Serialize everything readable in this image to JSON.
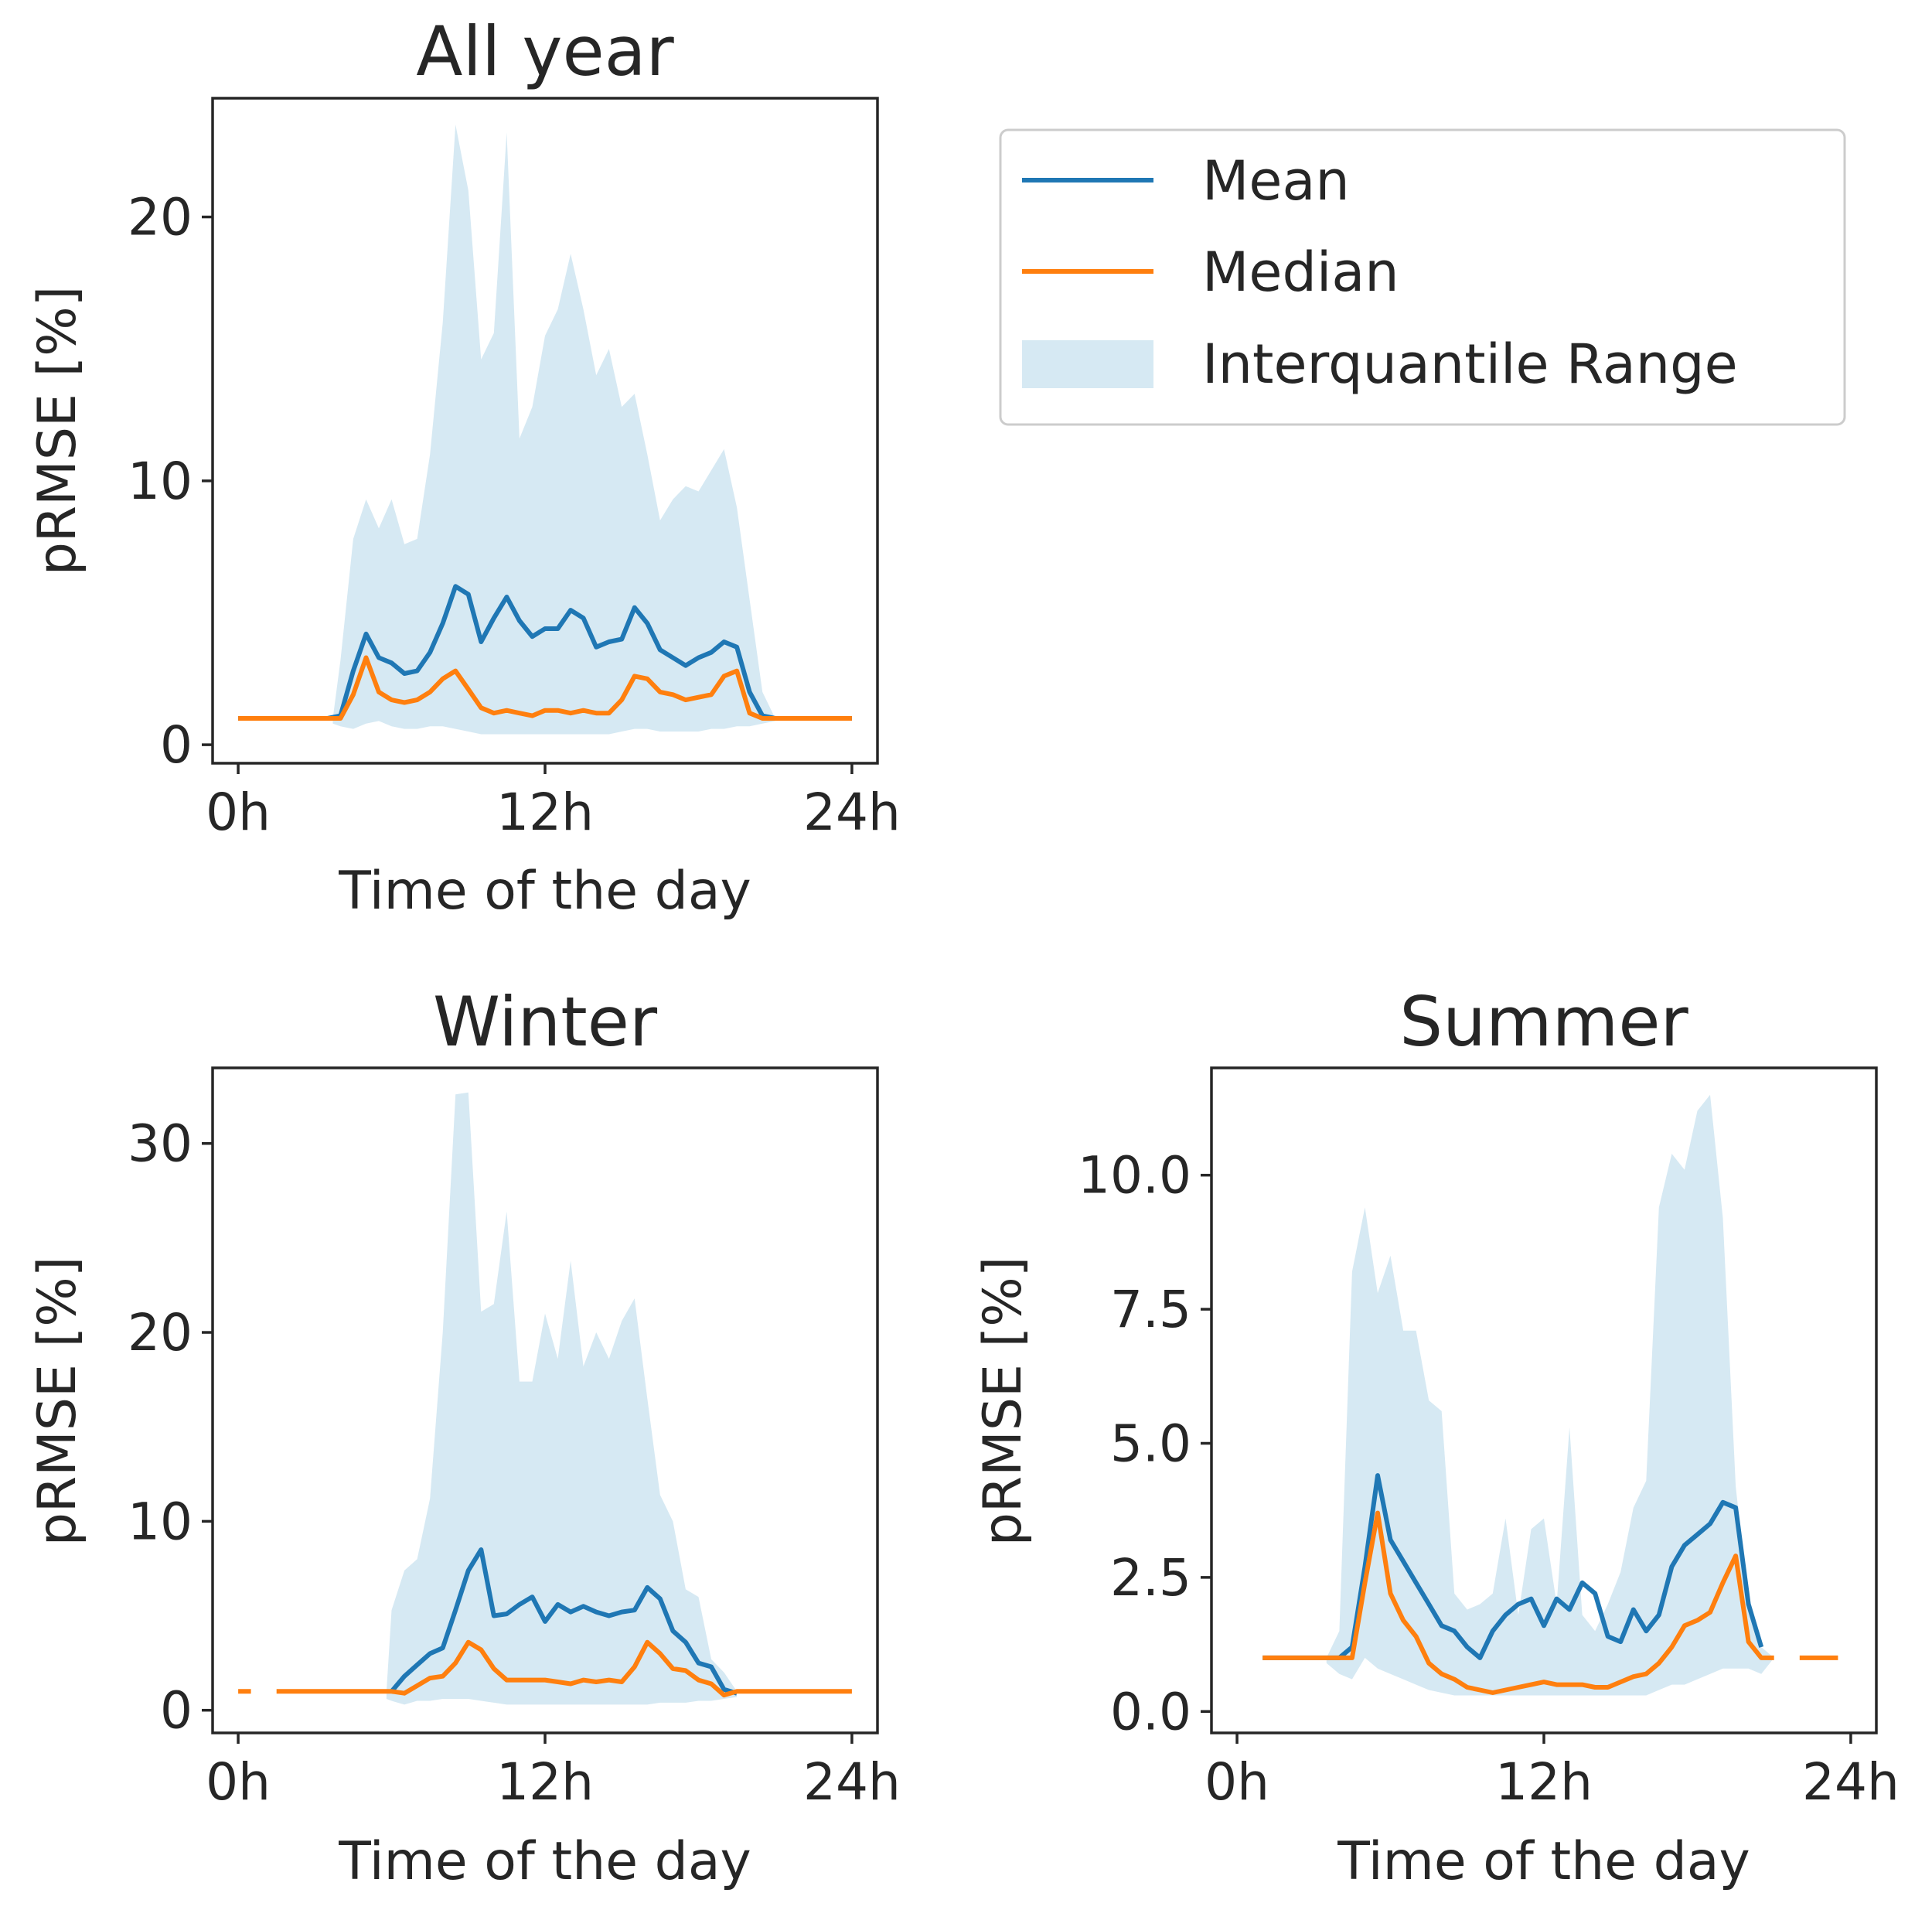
{
  "colors": {
    "mean": "#1f77b4",
    "median": "#ff7f0e",
    "iqr": "#d6e9f3"
  },
  "legend": {
    "mean": "Mean",
    "median": "Median",
    "iqr": "Interquantile Range"
  },
  "chart_data": [
    {
      "type": "line",
      "title": "All year",
      "xlabel": "Time of the day",
      "ylabel": "pRMSE [%]",
      "xlim": [
        -1,
        25
      ],
      "ylim": [
        -0.7,
        24.5
      ],
      "xticks": [
        0,
        12,
        24
      ],
      "xticklabels": [
        "0h",
        "12h",
        "24h"
      ],
      "yticks": [
        0,
        10,
        20
      ],
      "yticklabels": [
        "0",
        "10",
        "20"
      ],
      "x": [
        0,
        0.5,
        1,
        1.5,
        2,
        2.5,
        3,
        3.5,
        4,
        4.5,
        5,
        5.5,
        6,
        6.5,
        7,
        7.5,
        8,
        8.5,
        9,
        9.5,
        10,
        10.5,
        11,
        11.5,
        12,
        12.5,
        13,
        13.5,
        14,
        14.5,
        15,
        15.5,
        16,
        16.5,
        17,
        17.5,
        18,
        18.5,
        19,
        19.5,
        20,
        20.5,
        21,
        21.5,
        22,
        22.5,
        23,
        23.5,
        24
      ],
      "series": [
        {
          "name": "Mean",
          "values": [
            1,
            1,
            1,
            1,
            1,
            1,
            1,
            1,
            1.1,
            2.8,
            4.2,
            3.3,
            3.1,
            2.7,
            2.8,
            3.5,
            4.6,
            6,
            5.7,
            3.9,
            4.8,
            5.6,
            4.7,
            4.1,
            4.4,
            4.4,
            5.1,
            4.8,
            3.7,
            3.9,
            4,
            5.2,
            4.6,
            3.6,
            3.3,
            3,
            3.3,
            3.5,
            3.9,
            3.7,
            2,
            1.1,
            1,
            1,
            1,
            1,
            1,
            1,
            1
          ]
        },
        {
          "name": "Median",
          "values": [
            1,
            1,
            1,
            1,
            1,
            1,
            1,
            1,
            1,
            1.9,
            3.3,
            2,
            1.7,
            1.6,
            1.7,
            2,
            2.5,
            2.8,
            2.1,
            1.4,
            1.2,
            1.3,
            1.2,
            1.1,
            1.3,
            1.3,
            1.2,
            1.3,
            1.2,
            1.2,
            1.7,
            2.6,
            2.5,
            2,
            1.9,
            1.7,
            1.8,
            1.9,
            2.6,
            2.8,
            1.2,
            1,
            1,
            1,
            1,
            1,
            1,
            1,
            1
          ]
        }
      ],
      "band": {
        "name": "Interquantile Range",
        "x": [
          3.7,
          4,
          4.5,
          5,
          5.5,
          6,
          6.5,
          7,
          7.5,
          8,
          8.5,
          9,
          9.5,
          10,
          10.5,
          11,
          11.5,
          12,
          12.5,
          13,
          13.5,
          14,
          14.5,
          15,
          15.5,
          16,
          16.5,
          17,
          17.5,
          18,
          18.5,
          19,
          19.5,
          20,
          20.5,
          21
        ],
        "lower": [
          0.8,
          0.7,
          0.6,
          0.8,
          0.9,
          0.7,
          0.6,
          0.6,
          0.7,
          0.7,
          0.6,
          0.5,
          0.4,
          0.4,
          0.4,
          0.4,
          0.4,
          0.4,
          0.4,
          0.4,
          0.4,
          0.4,
          0.4,
          0.5,
          0.6,
          0.6,
          0.5,
          0.5,
          0.5,
          0.5,
          0.6,
          0.6,
          0.7,
          0.7,
          0.8,
          0.9
        ],
        "upper": [
          1,
          3.2,
          7.8,
          9.3,
          8.2,
          9.3,
          7.6,
          7.8,
          11,
          16,
          23.5,
          21,
          14.6,
          15.6,
          23.2,
          11.6,
          12.8,
          15.5,
          16.5,
          18.6,
          16.5,
          14,
          15,
          12.8,
          13.3,
          11,
          8.5,
          9.3,
          9.8,
          9.6,
          10.4,
          11.2,
          9,
          5.5,
          2,
          1
        ]
      }
    },
    {
      "type": "line",
      "title": "Winter",
      "xlabel": "Time of the day",
      "ylabel": "pRMSE [%]",
      "xlim": [
        -1,
        25
      ],
      "ylim": [
        -1.2,
        34
      ],
      "xticks": [
        0,
        12,
        24
      ],
      "xticklabels": [
        "0h",
        "12h",
        "24h"
      ],
      "yticks": [
        0,
        10,
        20,
        30
      ],
      "yticklabels": [
        "0",
        "10",
        "20",
        "30"
      ],
      "x": [
        0,
        0.5,
        1,
        1.5,
        2,
        2.5,
        3,
        3.5,
        4,
        4.5,
        5,
        5.5,
        6,
        6.5,
        7,
        7.5,
        8,
        8.5,
        9,
        9.5,
        10,
        10.5,
        11,
        11.5,
        12,
        12.5,
        13,
        13.5,
        14,
        14.5,
        15,
        15.5,
        16,
        16.5,
        17,
        17.5,
        18,
        18.5,
        19,
        19.5,
        20,
        20.5,
        21,
        21.5,
        22,
        22.5,
        23,
        23.5,
        24
      ],
      "series": [
        {
          "name": "Mean",
          "values": [
            null,
            null,
            null,
            null,
            null,
            null,
            null,
            null,
            null,
            null,
            null,
            null,
            1,
            1.8,
            2.4,
            3,
            3.3,
            5.3,
            7.4,
            8.5,
            5,
            5.1,
            5.6,
            6,
            4.7,
            5.6,
            5.2,
            5.5,
            5.2,
            5,
            5.2,
            5.3,
            6.5,
            5.9,
            4.2,
            3.6,
            2.5,
            2.3,
            1.1,
            0.9,
            null,
            null,
            null,
            null,
            null,
            null,
            null,
            null,
            null
          ]
        },
        {
          "name": "Median",
          "values": [
            1,
            1,
            null,
            1,
            1,
            1,
            1,
            1,
            1,
            1,
            1,
            1,
            1,
            0.9,
            1.3,
            1.7,
            1.8,
            2.5,
            3.6,
            3.2,
            2.2,
            1.6,
            1.6,
            1.6,
            1.6,
            1.5,
            1.4,
            1.6,
            1.5,
            1.6,
            1.5,
            2.3,
            3.6,
            3,
            2.2,
            2.1,
            1.6,
            1.4,
            0.8,
            1,
            1,
            1,
            1,
            1,
            1,
            1,
            1,
            1,
            1
          ]
        }
      ],
      "band": {
        "name": "Interquantile Range",
        "x": [
          5.8,
          6,
          6.5,
          7,
          7.5,
          8,
          8.5,
          9,
          9.5,
          10,
          10.5,
          11,
          11.5,
          12,
          12.5,
          13,
          13.5,
          14,
          14.5,
          15,
          15.5,
          16,
          16.5,
          17,
          17.5,
          18,
          18.5,
          19,
          19.5
        ],
        "lower": [
          0.6,
          0.5,
          0.3,
          0.5,
          0.5,
          0.6,
          0.6,
          0.6,
          0.5,
          0.4,
          0.3,
          0.3,
          0.3,
          0.3,
          0.3,
          0.3,
          0.3,
          0.3,
          0.3,
          0.3,
          0.3,
          0.3,
          0.4,
          0.4,
          0.4,
          0.5,
          0.5,
          0.6,
          0.7
        ],
        "upper": [
          1,
          5.3,
          7.4,
          8,
          11.2,
          20,
          32.6,
          32.7,
          21.1,
          21.5,
          26.4,
          17.4,
          17.4,
          21,
          18.6,
          23.8,
          18.2,
          20,
          18.6,
          20.6,
          21.8,
          16.5,
          11.4,
          10,
          6.4,
          6,
          2.7,
          2,
          1
        ]
      }
    },
    {
      "type": "line",
      "title": "Summer",
      "xlabel": "Time of the day",
      "ylabel": "pRMSE [%]",
      "xlim": [
        -1,
        25
      ],
      "ylim": [
        -0.4,
        12
      ],
      "xticks": [
        0,
        12,
        24
      ],
      "xticklabels": [
        "0h",
        "12h",
        "24h"
      ],
      "yticks": [
        0,
        2.5,
        5,
        7.5,
        10
      ],
      "yticklabels": [
        "0.0",
        "2.5",
        "5.0",
        "7.5",
        "10.0"
      ],
      "x": [
        0,
        0.5,
        1,
        1.5,
        2,
        2.5,
        3,
        3.5,
        4,
        4.5,
        5,
        5.5,
        6,
        6.5,
        7,
        7.5,
        8,
        8.5,
        9,
        9.5,
        10,
        10.5,
        11,
        11.5,
        12,
        12.5,
        13,
        13.5,
        14,
        14.5,
        15,
        15.5,
        16,
        16.5,
        17,
        17.5,
        18,
        18.5,
        19,
        19.5,
        20,
        20.5,
        21,
        21.5,
        22,
        22.5,
        23,
        23.5,
        24
      ],
      "series": [
        {
          "name": "Mean",
          "values": [
            null,
            null,
            1,
            1,
            1,
            1,
            1,
            1,
            1,
            1.2,
            2.7,
            4.4,
            3.2,
            2.8,
            2.4,
            2,
            1.6,
            1.5,
            1.2,
            1,
            1.5,
            1.8,
            2,
            2.1,
            1.6,
            2.1,
            1.9,
            2.4,
            2.2,
            1.4,
            1.3,
            1.9,
            1.5,
            1.8,
            2.7,
            3.1,
            3.3,
            3.5,
            3.9,
            3.8,
            2,
            1.2,
            null,
            null,
            null,
            null,
            null,
            null,
            null
          ]
        },
        {
          "name": "Median",
          "values": [
            null,
            null,
            1,
            1,
            1,
            1,
            1,
            1,
            1,
            1,
            2.4,
            3.7,
            2.2,
            1.7,
            1.4,
            0.9,
            0.7,
            0.6,
            0.45,
            0.4,
            0.35,
            0.4,
            0.45,
            0.5,
            0.55,
            0.5,
            0.5,
            0.5,
            0.45,
            0.45,
            0.55,
            0.65,
            0.7,
            0.9,
            1.2,
            1.6,
            1.7,
            1.85,
            2.4,
            2.9,
            1.3,
            1,
            1,
            null,
            1,
            1,
            1,
            1,
            null
          ]
        }
      ],
      "band": {
        "name": "Interquantile Range",
        "x": [
          3.5,
          4,
          4.5,
          5,
          5.5,
          6,
          6.5,
          7,
          7.5,
          8,
          8.5,
          9,
          9.5,
          10,
          10.5,
          11,
          11.5,
          12,
          12.5,
          13,
          13.5,
          14,
          14.5,
          15,
          15.5,
          16,
          16.5,
          17,
          17.5,
          18,
          18.5,
          19,
          19.5,
          20,
          20.5,
          21
        ],
        "lower": [
          0.9,
          0.7,
          0.6,
          1,
          0.8,
          0.7,
          0.6,
          0.5,
          0.4,
          0.35,
          0.3,
          0.3,
          0.3,
          0.3,
          0.3,
          0.3,
          0.3,
          0.3,
          0.3,
          0.3,
          0.3,
          0.3,
          0.3,
          0.3,
          0.3,
          0.3,
          0.4,
          0.5,
          0.5,
          0.6,
          0.7,
          0.8,
          0.8,
          0.8,
          0.7,
          1
        ],
        "upper": [
          1,
          1.5,
          8.2,
          9.4,
          7.8,
          8.5,
          7.1,
          7.1,
          5.8,
          5.6,
          2.2,
          1.9,
          2,
          2.2,
          3.6,
          1.8,
          3.4,
          3.6,
          2,
          5.3,
          1.8,
          1.5,
          2,
          2.6,
          3.8,
          4.3,
          9.4,
          10.4,
          10.1,
          11.2,
          11.5,
          9.2,
          4.2,
          2,
          1.2,
          1
        ]
      }
    }
  ]
}
